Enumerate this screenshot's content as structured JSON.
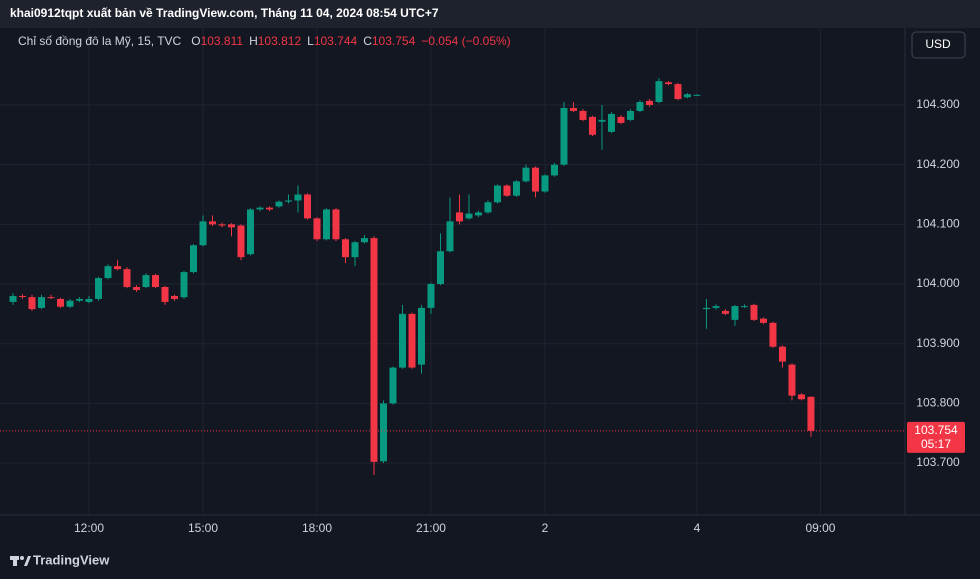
{
  "chart_data": {
    "type": "candlestick",
    "title": "khai0912tqpt xuất bản về TradingView.com, Tháng 11 04, 2024 08:54 UTC+7",
    "symbol": "Chỉ số đồng đô la Mỹ, 15, TVC",
    "ohlc_labels": [
      "O",
      "H",
      "L",
      "C"
    ],
    "change": "−0.054 (−0.05%)",
    "countdown": "05:17",
    "currency": "USD",
    "brand": "TradingView",
    "up_color": "#089981",
    "down_color": "#f23645",
    "grid": true,
    "x": [
      0,
      1,
      2,
      3,
      4,
      5,
      6,
      7,
      8,
      9,
      10,
      11,
      12,
      13,
      14,
      15,
      16,
      17,
      18,
      19,
      20,
      21,
      22,
      23,
      24,
      25,
      26,
      27,
      28,
      29,
      30,
      31,
      32,
      33,
      34,
      35,
      36,
      37,
      38,
      39,
      40,
      41,
      42,
      43,
      44,
      45,
      46,
      47,
      48,
      49,
      50,
      51,
      52,
      53,
      54,
      55,
      56,
      57,
      58,
      59,
      60,
      61,
      62,
      63,
      64,
      65,
      66,
      67,
      68,
      69,
      70,
      71,
      72,
      73,
      74,
      75,
      76,
      77,
      78,
      79,
      80,
      81,
      82,
      83,
      84
    ],
    "open": [
      103.97,
      103.98,
      103.978,
      103.96,
      103.978,
      103.975,
      103.962,
      103.972,
      103.97,
      103.975,
      104.01,
      104.03,
      104.025,
      103.995,
      103.995,
      104.015,
      103.995,
      103.98,
      103.978,
      104.02,
      104.065,
      104.105,
      104.1,
      104.1,
      104.098,
      104.05,
      104.125,
      104.128,
      104.13,
      104.138,
      104.14,
      104.15,
      104.11,
      104.075,
      104.125,
      104.075,
      104.045,
      104.07,
      104.077,
      103.703,
      103.8,
      103.86,
      103.95,
      103.865,
      103.96,
      104.0,
      104.055,
      104.12,
      104.11,
      104.115,
      104.12,
      104.137,
      104.165,
      104.148,
      104.172,
      104.195,
      104.155,
      104.182,
      104.2,
      104.295,
      104.29,
      104.28,
      104.272,
      104.255,
      104.28,
      104.275,
      104.29,
      104.307,
      104.305,
      104.338,
      104.335,
      104.313,
      104.317,
      103.958,
      103.96,
      103.955,
      103.94,
      103.963,
      103.965,
      103.942,
      103.935,
      103.895,
      103.865,
      103.815,
      103.811
    ],
    "high": [
      103.985,
      103.983,
      103.982,
      103.982,
      103.982,
      103.977,
      103.975,
      103.978,
      103.98,
      104.012,
      104.033,
      104.04,
      104.028,
      103.998,
      104.018,
      104.017,
      103.997,
      103.982,
      104.022,
      104.067,
      104.115,
      104.115,
      104.103,
      104.102,
      104.1,
      104.127,
      104.13,
      104.13,
      104.14,
      104.15,
      104.165,
      104.152,
      104.112,
      104.127,
      104.127,
      104.077,
      104.072,
      104.082,
      104.08,
      103.805,
      103.862,
      103.965,
      103.952,
      103.965,
      104.002,
      104.085,
      104.145,
      104.15,
      104.15,
      104.123,
      104.14,
      104.167,
      104.167,
      104.174,
      104.2,
      104.197,
      104.184,
      104.203,
      104.305,
      104.305,
      104.293,
      104.282,
      104.3,
      104.288,
      104.283,
      104.293,
      104.308,
      104.31,
      104.345,
      104.34,
      104.337,
      104.32,
      104.318,
      103.975,
      103.966,
      103.958,
      103.965,
      103.966,
      103.967,
      103.944,
      103.937,
      103.897,
      103.867,
      103.817,
      103.812
    ],
    "low": [
      103.965,
      103.975,
      103.955,
      103.958,
      103.975,
      103.96,
      103.96,
      103.97,
      103.968,
      103.972,
      104.008,
      104.023,
      103.993,
      103.987,
      103.993,
      103.993,
      103.965,
      103.972,
      103.975,
      104.018,
      104.063,
      104.097,
      104.095,
      104.08,
      104.04,
      104.048,
      104.122,
      104.122,
      104.128,
      104.135,
      104.12,
      104.108,
      104.072,
      104.073,
      104.072,
      104.035,
      104.03,
      104.068,
      103.68,
      103.7,
      103.798,
      103.858,
      103.858,
      103.85,
      103.95,
      103.998,
      104.053,
      104.1,
      104.108,
      104.112,
      104.118,
      104.135,
      104.146,
      104.146,
      104.17,
      104.145,
      104.153,
      104.18,
      104.198,
      104.288,
      104.273,
      104.248,
      104.225,
      104.253,
      104.268,
      104.273,
      104.288,
      104.297,
      104.303,
      104.333,
      104.308,
      104.311,
      104.315,
      103.925,
      103.957,
      103.948,
      103.93,
      103.96,
      103.938,
      103.933,
      103.893,
      103.86,
      103.805,
      103.805,
      103.744
    ],
    "close": [
      103.98,
      103.979,
      103.958,
      103.978,
      103.977,
      103.962,
      103.972,
      103.975,
      103.975,
      104.01,
      104.03,
      104.025,
      103.995,
      103.99,
      104.015,
      103.995,
      103.97,
      103.975,
      104.02,
      104.065,
      104.105,
      104.1,
      104.098,
      104.095,
      104.045,
      104.125,
      104.128,
      104.125,
      104.138,
      104.14,
      104.15,
      104.11,
      104.075,
      104.125,
      104.075,
      104.045,
      104.07,
      104.077,
      103.702,
      103.8,
      103.86,
      103.95,
      103.86,
      103.96,
      104.0,
      104.055,
      104.105,
      104.105,
      104.118,
      104.12,
      104.137,
      104.165,
      104.148,
      104.172,
      104.195,
      104.155,
      104.182,
      104.2,
      104.295,
      104.29,
      104.275,
      104.25,
      104.275,
      104.285,
      104.27,
      104.29,
      104.305,
      104.3,
      104.34,
      104.335,
      104.31,
      104.318,
      104.317,
      103.96,
      103.963,
      103.95,
      103.963,
      103.963,
      103.94,
      103.935,
      103.895,
      103.87,
      103.813,
      103.807,
      103.754
    ],
    "xlim": [
      -1.37,
      93.9
    ],
    "xticks": [
      {
        "value": 8,
        "label": "12:00"
      },
      {
        "value": 20,
        "label": "15:00"
      },
      {
        "value": 32,
        "label": "18:00"
      },
      {
        "value": 44,
        "label": "21:00"
      },
      {
        "value": 56,
        "label": "2"
      },
      {
        "value": 72,
        "label": "4"
      },
      {
        "value": 85,
        "label": "09:00"
      }
    ],
    "ylim": [
      103.613,
      104.429
    ],
    "yticks": [
      {
        "value": 103.7,
        "label": "103.700"
      },
      {
        "value": 103.8,
        "label": "103.800"
      },
      {
        "value": 103.9,
        "label": "103.900"
      },
      {
        "value": 104.0,
        "label": "104.000"
      },
      {
        "value": 104.1,
        "label": "104.100"
      },
      {
        "value": 104.2,
        "label": "104.200"
      },
      {
        "value": 104.3,
        "label": "104.300"
      }
    ]
  }
}
